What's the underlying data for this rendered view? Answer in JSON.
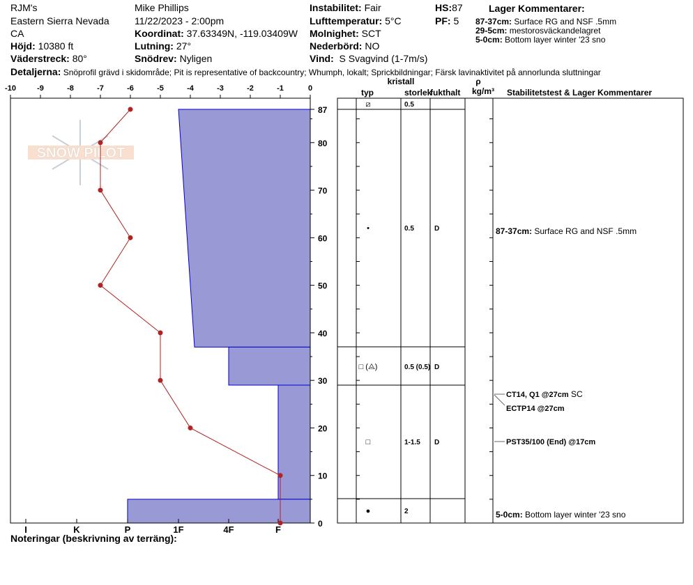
{
  "header": {
    "org": "RJM's",
    "region": "Eastern Sierra Nevada",
    "state": "CA",
    "elev_label": "Höjd:",
    "elev": "10380 ft",
    "aspect_label": "Väderstreck:",
    "aspect": "80°",
    "observer": "Mike Phillips",
    "datetime": "11/22/2023 - 2:00pm",
    "coord_label": "Koordinat:",
    "coord": "37.63349N, -119.03409W",
    "slope_label": "Lutning:",
    "slope": "27°",
    "drift_label": "Snödrev:",
    "drift": "Nyligen",
    "instab_label": "Instabilitet:",
    "instab": "Fair",
    "airtemp_label": "Lufttemperatur:",
    "airtemp": "5°C",
    "sky_label": "Molnighet:",
    "sky": "SCT",
    "precip_label": "Nederbörd:",
    "precip": "NO",
    "wind_label": "Vind:",
    "wind": "S Svagvind (1-7m/s)",
    "hs_label": "HS:",
    "hs": "87",
    "pf_label": "PF:",
    "pf": "5",
    "layer_comments_title": "Lager Kommentarer:",
    "layer_comments": [
      {
        "range": "87-37cm:",
        "text": "Surface RG and NSF .5mm"
      },
      {
        "range": "29-5cm:",
        "text": "mestorosväckandelagret"
      },
      {
        "range": "5-0cm:",
        "text": "Bottom layer winter '23 sno"
      }
    ],
    "details_label": "Detaljerna:",
    "details": "Snöprofil grävd i skidområde;  Pit is representative of backcountry;  Whumph, lokalt;  Sprickbildningar;  Färsk lavinaktivitet på annorlunda sluttningar"
  },
  "logo": "SNOW PILOT",
  "notes_label": "Noteringar (beskrivning av terräng):",
  "chart_data": {
    "type": "line",
    "temp_axis": {
      "ticks": [
        "-10",
        "-9",
        "-8",
        "-7",
        "-6",
        "-5",
        "-4",
        "-3",
        "-2",
        "-1",
        "0"
      ],
      "range": [
        -10,
        0
      ]
    },
    "depth_axis": {
      "ticks": [
        "87",
        "80",
        "70",
        "60",
        "50",
        "40",
        "30",
        "20",
        "10",
        "0"
      ],
      "range": [
        0,
        87
      ]
    },
    "hardness_axis": {
      "ticks": [
        "I",
        "K",
        "P",
        "1F",
        "4F",
        "F"
      ]
    },
    "temperature_profile": {
      "depth": [
        87,
        80,
        70,
        60,
        50,
        40,
        30,
        20,
        10,
        0
      ],
      "temp": [
        -6,
        -7,
        -7,
        -6,
        -7,
        -5,
        -5,
        -4,
        -1,
        -1
      ],
      "color": "#b22222"
    },
    "hardness_layers": [
      {
        "top": 87,
        "bottom": 37,
        "hardness_top": "1F",
        "hardness_bottom": "1F-"
      },
      {
        "top": 37,
        "bottom": 29,
        "hardness_top": "4F",
        "hardness_bottom": "4F"
      },
      {
        "top": 29,
        "bottom": 5,
        "hardness_top": "F",
        "hardness_bottom": "F"
      },
      {
        "top": 5,
        "bottom": 0,
        "hardness_top": "P",
        "hardness_bottom": "P"
      }
    ],
    "fill_color": "#9999d6",
    "edge_color": "#0000cc"
  },
  "table": {
    "headers": {
      "crystal": "kristall",
      "type": "typ",
      "size": "storlek",
      "moisture": "fukthalt",
      "rho": "ρ",
      "density": "kg/m³",
      "comments": "Stabilitetstest & Lager Kommentarer"
    },
    "rows": [
      {
        "type": "⧄",
        "size": "0.5",
        "moisture": ""
      },
      {
        "type": "•",
        "size": "0.5",
        "moisture": "D"
      },
      {
        "type": "□ (⨺)",
        "size": "0.5 (0.5)",
        "moisture": "D"
      },
      {
        "type": "□",
        "size": "1-1.5",
        "moisture": "D"
      },
      {
        "type": "●",
        "size": "2",
        "moisture": ""
      }
    ],
    "comments": [
      {
        "range": "87-37cm:",
        "text": "Surface RG and NSF .5mm"
      },
      {
        "range": "5-0cm:",
        "text": "Bottom layer winter '23 sno"
      }
    ],
    "tests": [
      {
        "text": "CT14, Q1 @27cm",
        "extra": "SC"
      },
      {
        "text": "ECTP14 @27cm"
      },
      {
        "text": "PST35/100 (End) @17cm"
      }
    ]
  }
}
